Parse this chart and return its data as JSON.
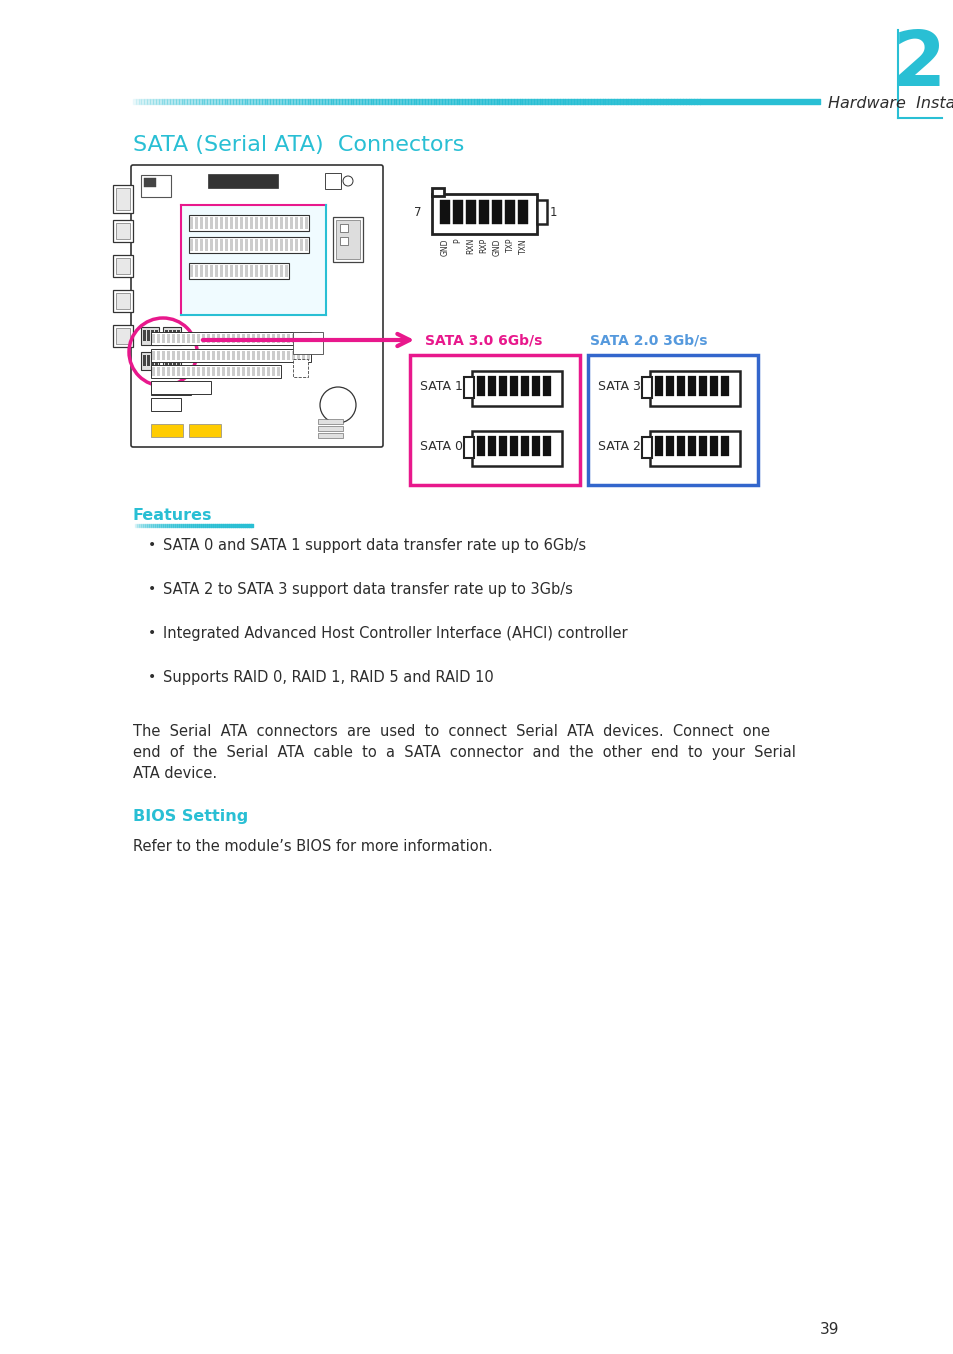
{
  "page_bg": "#ffffff",
  "cyan_color": "#29bfd4",
  "cyan_light": "#7fd8e8",
  "magenta_color": "#e8188c",
  "blue_box_color": "#2255bb",
  "dark_text": "#2d2d2d",
  "chapter_num": "2",
  "header_title": "Hardware  Installation",
  "section_title": "SATA (Serial ATA)  Connectors",
  "features_title": "Features",
  "bios_title": "BIOS Setting",
  "bullet_points": [
    "SATA 0 and SATA 1 support data transfer rate up to 6Gb/s",
    "SATA 2 to SATA 3 support data transfer rate up to 3Gb/s",
    "Integrated Advanced Host Controller Interface (AHCI) controller",
    "Supports RAID 0, RAID 1, RAID 5 and RAID 10"
  ],
  "para_lines": [
    "The  Serial  ATA  connectors  are  used  to  connect  Serial  ATA  devices.  Connect  one",
    "end  of  the  Serial  ATA  cable  to  a  SATA  connector  and  the  other  end  to  your  Serial",
    "ATA device."
  ],
  "bios_para": "Refer to the module’s BIOS for more information.",
  "page_num": "39",
  "sata_30_label": "SATA 3.0 6Gb/s",
  "sata_20_label": "SATA 2.0 3Gb/s",
  "pin_labels": [
    "GND",
    "P",
    "RXN",
    "RXP",
    "GND",
    "TXP",
    "TXN"
  ],
  "connector_labels": [
    "SATA 1",
    "SATA 0",
    "SATA 3",
    "SATA 2"
  ]
}
